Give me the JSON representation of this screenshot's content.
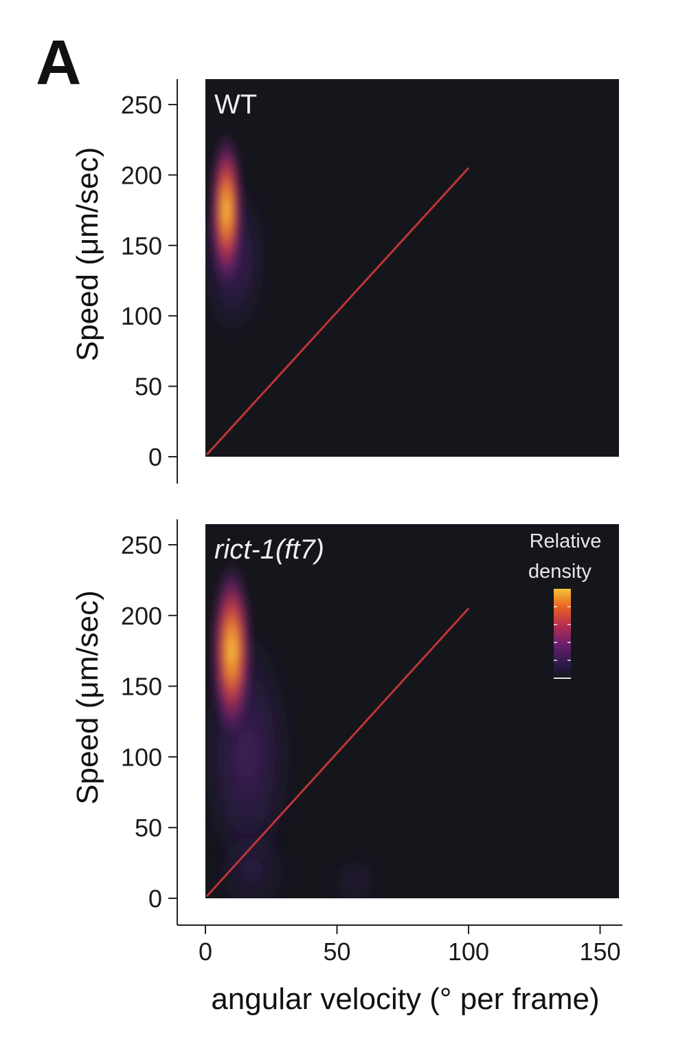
{
  "figure": {
    "panel_label": "A",
    "ylabel": "Speed (μm/sec)",
    "xlabel": "angular velocity (° per frame)",
    "legend": {
      "title_line1": "Relative",
      "title_line2": "density",
      "placement": "top-right"
    }
  },
  "chart_data": [
    {
      "type": "heatmap",
      "panel": "WT",
      "title": "WT",
      "x_ticks": [
        0,
        50,
        100,
        150
      ],
      "y_ticks": [
        0,
        50,
        100,
        150,
        200,
        250
      ],
      "xlim": [
        -1,
        157
      ],
      "ylim": [
        0,
        270
      ],
      "xlabel": "angular velocity (° per frame)",
      "ylabel": "Speed (μm/sec)",
      "density_peak": {
        "x": 8,
        "y": 175
      },
      "reference_line": {
        "x": [
          0,
          100
        ],
        "y": [
          0,
          205
        ]
      }
    },
    {
      "type": "heatmap",
      "panel": "rict-1(ft7)",
      "title": "rict-1(ft7)",
      "x_ticks": [
        0,
        50,
        100,
        150
      ],
      "y_ticks": [
        0,
        50,
        100,
        150,
        200,
        250
      ],
      "xlim": [
        -1,
        157
      ],
      "ylim": [
        0,
        270
      ],
      "xlabel": "angular velocity (° per frame)",
      "ylabel": "Speed (μm/sec)",
      "density_peak": {
        "x": 10,
        "y": 175
      },
      "reference_line": {
        "x": [
          0,
          100
        ],
        "y": [
          0,
          205
        ]
      }
    }
  ],
  "colors": {
    "background": "#15161b",
    "reference_line": "#c0343a",
    "colormap": [
      "#15161b",
      "#2a1a4a",
      "#6a1f6e",
      "#b8304f",
      "#e8641f",
      "#f5c23a"
    ]
  }
}
